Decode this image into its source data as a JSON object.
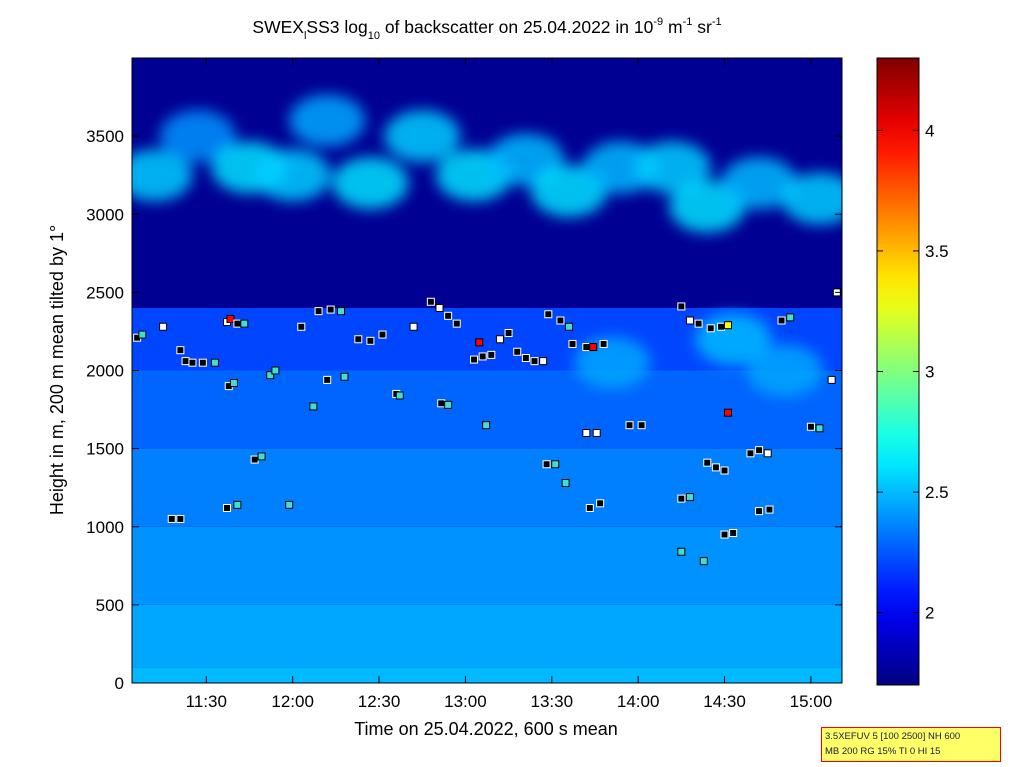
{
  "chart_data": {
    "type": "heatmap",
    "title_parts": {
      "prefix": "SWEX",
      "prefix_sub": "l",
      "name": "SS3 log",
      "log_sub": "10",
      "middle": " of backscatter on 25.04.2022 in 10",
      "exp1": "-9",
      "unit1": " m",
      "exp2": "-1",
      "unit2": " sr",
      "exp3": "-1"
    },
    "xlabel": "Time on 25.04.2022, 600 s mean",
    "ylabel": "Height in m, 200 m mean tilted by 1°",
    "x_ticks": [
      "11:30",
      "12:00",
      "12:30",
      "13:00",
      "13:30",
      "14:00",
      "14:30",
      "15:00"
    ],
    "x_tick_hours": [
      11.5,
      12.0,
      12.5,
      13.0,
      13.5,
      14.0,
      14.5,
      15.0
    ],
    "xlim_hours": [
      11.07,
      15.18
    ],
    "y_ticks": [
      0,
      500,
      1000,
      1500,
      2000,
      2500,
      3000,
      3500
    ],
    "ylim": [
      0,
      4000
    ],
    "colorbar": {
      "ticks": [
        2,
        2.5,
        3,
        3.5,
        4
      ],
      "tick_labels": [
        "2",
        "2.5",
        "3",
        "3.5",
        "4"
      ],
      "range": [
        1.7,
        4.3
      ],
      "colormap": "jet"
    },
    "aerosol_layer": {
      "description_values": "backscatter log10 values by height band",
      "bands": [
        {
          "height_from": 0,
          "height_to": 100,
          "value": 2.5
        },
        {
          "height_from": 100,
          "height_to": 500,
          "value": 2.45
        },
        {
          "height_from": 500,
          "height_to": 1000,
          "value": 2.4
        },
        {
          "height_from": 1000,
          "height_to": 1500,
          "value": 2.35
        },
        {
          "height_from": 1500,
          "height_to": 2000,
          "value": 2.28
        },
        {
          "height_from": 2000,
          "height_to": 2400,
          "value": 2.2
        },
        {
          "height_from": 2400,
          "height_to": 4000,
          "value": 1.75
        }
      ]
    },
    "cloud_patches": [
      {
        "t": 11.2,
        "h": 3250,
        "v": 2.55
      },
      {
        "t": 11.45,
        "h": 3500,
        "v": 2.4
      },
      {
        "t": 11.75,
        "h": 3300,
        "v": 2.6
      },
      {
        "t": 12.0,
        "h": 3250,
        "v": 2.55
      },
      {
        "t": 12.2,
        "h": 3600,
        "v": 2.45
      },
      {
        "t": 12.45,
        "h": 3200,
        "v": 2.6
      },
      {
        "t": 12.75,
        "h": 3500,
        "v": 2.55
      },
      {
        "t": 13.05,
        "h": 3250,
        "v": 2.6
      },
      {
        "t": 13.35,
        "h": 3350,
        "v": 2.5
      },
      {
        "t": 13.6,
        "h": 3150,
        "v": 2.6
      },
      {
        "t": 13.9,
        "h": 3300,
        "v": 2.5
      },
      {
        "t": 14.2,
        "h": 3300,
        "v": 2.55
      },
      {
        "t": 14.4,
        "h": 3050,
        "v": 2.6
      },
      {
        "t": 14.7,
        "h": 3200,
        "v": 2.5
      },
      {
        "t": 15.05,
        "h": 3100,
        "v": 2.55
      },
      {
        "t": 14.55,
        "h": 2200,
        "v": 2.5
      },
      {
        "t": 14.85,
        "h": 2000,
        "v": 2.45
      },
      {
        "t": 13.85,
        "h": 2050,
        "v": 2.45
      }
    ],
    "detections": [
      {
        "t": 11.1,
        "h": 2210,
        "c": "black"
      },
      {
        "t": 11.13,
        "h": 2230,
        "c": "cyan"
      },
      {
        "t": 11.25,
        "h": 2280,
        "c": "white"
      },
      {
        "t": 11.35,
        "h": 2130,
        "c": "black"
      },
      {
        "t": 11.38,
        "h": 2060,
        "c": "black"
      },
      {
        "t": 11.42,
        "h": 2050,
        "c": "black"
      },
      {
        "t": 11.48,
        "h": 2050,
        "c": "black"
      },
      {
        "t": 11.55,
        "h": 2050,
        "c": "cyan"
      },
      {
        "t": 11.62,
        "h": 2310,
        "c": "white"
      },
      {
        "t": 11.64,
        "h": 2330,
        "c": "red"
      },
      {
        "t": 11.68,
        "h": 2300,
        "c": "black"
      },
      {
        "t": 11.72,
        "h": 2300,
        "c": "cyan"
      },
      {
        "t": 11.63,
        "h": 1900,
        "c": "black"
      },
      {
        "t": 11.66,
        "h": 1920,
        "c": "cyan"
      },
      {
        "t": 11.78,
        "h": 1430,
        "c": "black"
      },
      {
        "t": 11.82,
        "h": 1450,
        "c": "cyan"
      },
      {
        "t": 11.87,
        "h": 1970,
        "c": "cyan"
      },
      {
        "t": 11.9,
        "h": 2000,
        "c": "cyan"
      },
      {
        "t": 11.3,
        "h": 1050,
        "c": "black"
      },
      {
        "t": 11.35,
        "h": 1050,
        "c": "black"
      },
      {
        "t": 11.62,
        "h": 1120,
        "c": "black"
      },
      {
        "t": 11.68,
        "h": 1140,
        "c": "cyan"
      },
      {
        "t": 12.05,
        "h": 2280,
        "c": "black"
      },
      {
        "t": 12.15,
        "h": 2380,
        "c": "black"
      },
      {
        "t": 12.22,
        "h": 2390,
        "c": "black"
      },
      {
        "t": 12.28,
        "h": 2380,
        "c": "cyan"
      },
      {
        "t": 12.12,
        "h": 1770,
        "c": "cyan"
      },
      {
        "t": 12.2,
        "h": 1940,
        "c": "black"
      },
      {
        "t": 12.3,
        "h": 1960,
        "c": "cyan"
      },
      {
        "t": 12.38,
        "h": 2200,
        "c": "black"
      },
      {
        "t": 12.45,
        "h": 2190,
        "c": "black"
      },
      {
        "t": 12.52,
        "h": 2230,
        "c": "black"
      },
      {
        "t": 12.6,
        "h": 1850,
        "c": "black"
      },
      {
        "t": 12.62,
        "h": 1840,
        "c": "cyan"
      },
      {
        "t": 12.7,
        "h": 2280,
        "c": "white"
      },
      {
        "t": 12.8,
        "h": 2440,
        "c": "black"
      },
      {
        "t": 12.85,
        "h": 2400,
        "c": "white"
      },
      {
        "t": 12.9,
        "h": 2350,
        "c": "black"
      },
      {
        "t": 12.95,
        "h": 2300,
        "c": "black"
      },
      {
        "t": 12.86,
        "h": 1790,
        "c": "black"
      },
      {
        "t": 12.9,
        "h": 1780,
        "c": "cyan"
      },
      {
        "t": 13.05,
        "h": 2070,
        "c": "black"
      },
      {
        "t": 13.1,
        "h": 2090,
        "c": "black"
      },
      {
        "t": 13.15,
        "h": 2100,
        "c": "black"
      },
      {
        "t": 13.08,
        "h": 2180,
        "c": "red"
      },
      {
        "t": 13.12,
        "h": 1650,
        "c": "cyan"
      },
      {
        "t": 13.2,
        "h": 2200,
        "c": "white"
      },
      {
        "t": 13.25,
        "h": 2240,
        "c": "black"
      },
      {
        "t": 13.3,
        "h": 2120,
        "c": "black"
      },
      {
        "t": 13.35,
        "h": 2080,
        "c": "black"
      },
      {
        "t": 13.4,
        "h": 2060,
        "c": "black"
      },
      {
        "t": 13.45,
        "h": 2060,
        "c": "white"
      },
      {
        "t": 13.48,
        "h": 2360,
        "c": "black"
      },
      {
        "t": 13.55,
        "h": 2320,
        "c": "black"
      },
      {
        "t": 13.6,
        "h": 2280,
        "c": "cyan"
      },
      {
        "t": 13.47,
        "h": 1400,
        "c": "black"
      },
      {
        "t": 13.52,
        "h": 1400,
        "c": "cyan"
      },
      {
        "t": 13.58,
        "h": 1280,
        "c": "cyan"
      },
      {
        "t": 13.62,
        "h": 2170,
        "c": "black"
      },
      {
        "t": 13.7,
        "h": 2150,
        "c": "black"
      },
      {
        "t": 13.74,
        "h": 2150,
        "c": "red"
      },
      {
        "t": 13.8,
        "h": 2170,
        "c": "black"
      },
      {
        "t": 13.7,
        "h": 1600,
        "c": "white"
      },
      {
        "t": 13.76,
        "h": 1600,
        "c": "white"
      },
      {
        "t": 13.72,
        "h": 1120,
        "c": "black"
      },
      {
        "t": 13.78,
        "h": 1150,
        "c": "black"
      },
      {
        "t": 13.95,
        "h": 1650,
        "c": "black"
      },
      {
        "t": 14.02,
        "h": 1650,
        "c": "black"
      },
      {
        "t": 14.25,
        "h": 2410,
        "c": "black"
      },
      {
        "t": 14.3,
        "h": 2320,
        "c": "white"
      },
      {
        "t": 14.35,
        "h": 2300,
        "c": "black"
      },
      {
        "t": 14.42,
        "h": 2270,
        "c": "black"
      },
      {
        "t": 14.48,
        "h": 2280,
        "c": "black"
      },
      {
        "t": 14.52,
        "h": 2290,
        "c": "yellow"
      },
      {
        "t": 14.25,
        "h": 1180,
        "c": "black"
      },
      {
        "t": 14.3,
        "h": 1190,
        "c": "cyan"
      },
      {
        "t": 14.4,
        "h": 1410,
        "c": "black"
      },
      {
        "t": 14.45,
        "h": 1380,
        "c": "black"
      },
      {
        "t": 14.5,
        "h": 1360,
        "c": "black"
      },
      {
        "t": 14.52,
        "h": 1730,
        "c": "red"
      },
      {
        "t": 14.5,
        "h": 950,
        "c": "black"
      },
      {
        "t": 14.55,
        "h": 960,
        "c": "black"
      },
      {
        "t": 14.65,
        "h": 1470,
        "c": "black"
      },
      {
        "t": 14.7,
        "h": 1490,
        "c": "black"
      },
      {
        "t": 14.75,
        "h": 1470,
        "c": "white"
      },
      {
        "t": 14.7,
        "h": 1100,
        "c": "black"
      },
      {
        "t": 14.76,
        "h": 1110,
        "c": "black"
      },
      {
        "t": 14.83,
        "h": 2320,
        "c": "black"
      },
      {
        "t": 14.88,
        "h": 2340,
        "c": "cyan"
      },
      {
        "t": 15.0,
        "h": 1640,
        "c": "black"
      },
      {
        "t": 15.05,
        "h": 1630,
        "c": "cyan"
      },
      {
        "t": 15.12,
        "h": 1940,
        "c": "white"
      },
      {
        "t": 15.15,
        "h": 2500,
        "c": "white"
      },
      {
        "t": 14.25,
        "h": 840,
        "c": "cyan"
      },
      {
        "t": 14.38,
        "h": 780,
        "c": "cyan"
      },
      {
        "t": 11.98,
        "h": 1140,
        "c": "cyan"
      }
    ]
  },
  "info_box": {
    "line1": "3.5XEFUV 5 [100 2500] NH 600",
    "line2": "MB 200 RG 15% TI 0 HI 15"
  }
}
